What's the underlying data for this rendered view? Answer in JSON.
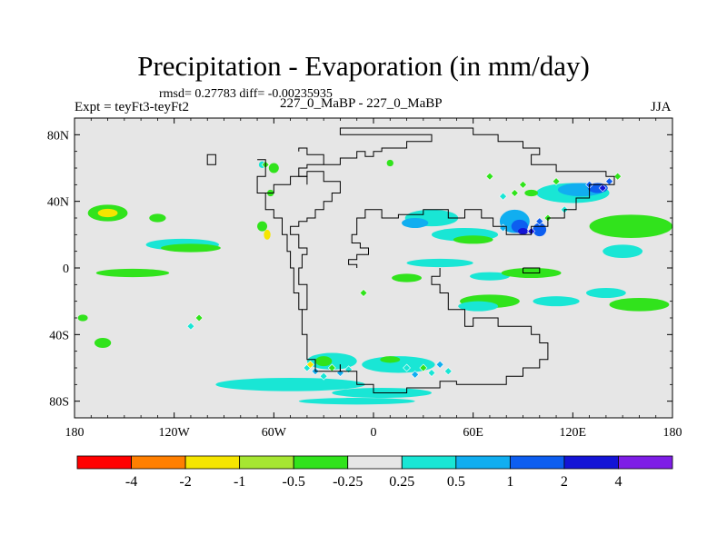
{
  "chart_data": {
    "type": "contour-map",
    "title": "Precipitation - Evaporation (in mm/day)",
    "stats": "rmsd= 0.27783 diff= -0.00235935",
    "left_label": "Expt = teyFt3-teyFt2",
    "center_label": "227_0_MaBP - 227_0_MaBP",
    "right_label": "JJA",
    "x_range": [
      -180,
      180
    ],
    "y_range": [
      -90,
      90
    ],
    "x_ticks": [
      {
        "value": -180,
        "label": "180"
      },
      {
        "value": -120,
        "label": "120W"
      },
      {
        "value": -60,
        "label": "60W"
      },
      {
        "value": 0,
        "label": "0"
      },
      {
        "value": 60,
        "label": "60E"
      },
      {
        "value": 120,
        "label": "120E"
      },
      {
        "value": 180,
        "label": "180"
      }
    ],
    "y_ticks": [
      {
        "value": 80,
        "label": "80N"
      },
      {
        "value": 40,
        "label": "40N"
      },
      {
        "value": 0,
        "label": "0"
      },
      {
        "value": -40,
        "label": "40S"
      },
      {
        "value": -80,
        "label": "80S"
      }
    ],
    "colorbar": {
      "colors": [
        "#ff0000",
        "#ff7f00",
        "#f5e500",
        "#a6e632",
        "#31e31c",
        "#e6e6e6",
        "#19e6d5",
        "#11aef0",
        "#0d5ef0",
        "#1414d6",
        "#7e1ee6"
      ],
      "labels": [
        "-4",
        "-2",
        "-1",
        "-0.5",
        "-0.25",
        "0.25",
        "0.5",
        "1",
        "2",
        "4"
      ]
    },
    "background_color": "#e6e6e6",
    "blobs": [
      {
        "lon": -160,
        "lat": 33,
        "rlon": 12,
        "rlat": 5,
        "level": -0.5
      },
      {
        "lon": -160,
        "lat": 33,
        "rlon": 6,
        "rlat": 2.5,
        "level": -1
      },
      {
        "lon": -115,
        "lat": 14,
        "rlon": 22,
        "rlat": 3.5,
        "level": 0.25
      },
      {
        "lon": -110,
        "lat": 12,
        "rlon": 18,
        "rlat": 2.5,
        "level": -0.5
      },
      {
        "lon": -145,
        "lat": -3,
        "rlon": 22,
        "rlat": 2.5,
        "level": -0.5
      },
      {
        "lon": -130,
        "lat": 30,
        "rlon": 5,
        "rlat": 2.5,
        "level": -0.5
      },
      {
        "lon": -163,
        "lat": -45,
        "rlon": 5,
        "rlat": 3,
        "level": -0.5
      },
      {
        "lon": -175,
        "lat": -30,
        "rlon": 3,
        "rlat": 2,
        "level": -0.5
      },
      {
        "lon": -67,
        "lat": 25,
        "rlon": 3,
        "rlat": 3,
        "level": -0.5
      },
      {
        "lon": -64,
        "lat": 20,
        "rlon": 2,
        "rlat": 3,
        "level": -1
      },
      {
        "lon": -60,
        "lat": 60,
        "rlon": 3,
        "rlat": 3,
        "level": -0.5
      },
      {
        "lon": -62,
        "lat": 45,
        "rlon": 2,
        "rlat": 2,
        "level": -0.5
      },
      {
        "lon": -67,
        "lat": 62,
        "rlon": 2,
        "rlat": 2,
        "level": 0.25
      },
      {
        "lon": 10,
        "lat": 63,
        "rlon": 2,
        "rlat": 2,
        "level": -0.5
      },
      {
        "lon": 35,
        "lat": 30,
        "rlon": 16,
        "rlat": 5,
        "level": 0.25
      },
      {
        "lon": 25,
        "lat": 27,
        "rlon": 8,
        "rlat": 3,
        "level": 0.5
      },
      {
        "lon": 55,
        "lat": 20,
        "rlon": 20,
        "rlat": 4,
        "level": 0.25
      },
      {
        "lon": 60,
        "lat": 17,
        "rlon": 12,
        "rlat": 2.5,
        "level": -0.5
      },
      {
        "lon": 85,
        "lat": 28,
        "rlon": 9,
        "rlat": 7,
        "level": 0.5
      },
      {
        "lon": 88,
        "lat": 25,
        "rlon": 5,
        "rlat": 4,
        "level": 1
      },
      {
        "lon": 90,
        "lat": 22,
        "rlon": 3,
        "rlat": 2,
        "level": 2
      },
      {
        "lon": 100,
        "lat": 23,
        "rlon": 4,
        "rlat": 4,
        "level": 1
      },
      {
        "lon": 120,
        "lat": 45,
        "rlon": 22,
        "rlat": 6,
        "level": 0.25
      },
      {
        "lon": 125,
        "lat": 47,
        "rlon": 14,
        "rlat": 4,
        "level": 0.5
      },
      {
        "lon": 135,
        "lat": 48,
        "rlon": 6,
        "rlat": 3,
        "level": 1
      },
      {
        "lon": 95,
        "lat": 45,
        "rlon": 4,
        "rlat": 2,
        "level": -0.5
      },
      {
        "lon": 40,
        "lat": 3,
        "rlon": 20,
        "rlat": 2.5,
        "level": 0.25
      },
      {
        "lon": 20,
        "lat": -6,
        "rlon": 9,
        "rlat": 2.5,
        "level": -0.5
      },
      {
        "lon": 70,
        "lat": -5,
        "rlon": 12,
        "rlat": 2.5,
        "level": 0.25
      },
      {
        "lon": 95,
        "lat": -3,
        "rlon": 18,
        "rlat": 3,
        "level": -0.5
      },
      {
        "lon": 70,
        "lat": -20,
        "rlon": 18,
        "rlat": 4,
        "level": -0.5
      },
      {
        "lon": 63,
        "lat": -23,
        "rlon": 12,
        "rlat": 3,
        "level": 0.25
      },
      {
        "lon": 110,
        "lat": -20,
        "rlon": 14,
        "rlat": 3,
        "level": 0.25
      },
      {
        "lon": 155,
        "lat": 25,
        "rlon": 25,
        "rlat": 7,
        "level": -0.5
      },
      {
        "lon": 150,
        "lat": 10,
        "rlon": 12,
        "rlat": 4,
        "level": 0.25
      },
      {
        "lon": 160,
        "lat": -22,
        "rlon": 18,
        "rlat": 4,
        "level": -0.5
      },
      {
        "lon": 140,
        "lat": -15,
        "rlon": 12,
        "rlat": 3,
        "level": 0.25
      },
      {
        "lon": -25,
        "lat": -56,
        "rlon": 15,
        "rlat": 5,
        "level": 0.25
      },
      {
        "lon": 15,
        "lat": -58,
        "rlon": 22,
        "rlat": 5,
        "level": 0.25
      },
      {
        "lon": -30,
        "lat": -56,
        "rlon": 5,
        "rlat": 3,
        "level": -0.5
      },
      {
        "lon": 10,
        "lat": -55,
        "rlon": 6,
        "rlat": 2,
        "level": -0.5
      },
      {
        "lon": -50,
        "lat": -70,
        "rlon": 45,
        "rlat": 4,
        "level": 0.25
      },
      {
        "lon": 5,
        "lat": -75,
        "rlon": 30,
        "rlat": 3,
        "level": 0.25
      },
      {
        "lon": -10,
        "lat": -80,
        "rlon": 35,
        "rlat": 2,
        "level": 0.25
      }
    ],
    "diamonds": [
      {
        "lon": 85,
        "lat": 45,
        "level": -0.5
      },
      {
        "lon": 90,
        "lat": 50,
        "level": -0.5
      },
      {
        "lon": 78,
        "lat": 43,
        "level": 0.25
      },
      {
        "lon": 70,
        "lat": 55,
        "level": -0.5
      },
      {
        "lon": 110,
        "lat": 52,
        "level": -0.5
      },
      {
        "lon": 130,
        "lat": 50,
        "level": 1
      },
      {
        "lon": 138,
        "lat": 48,
        "level": 2
      },
      {
        "lon": 142,
        "lat": 52,
        "level": 1
      },
      {
        "lon": 147,
        "lat": 55,
        "level": -0.5
      },
      {
        "lon": 95,
        "lat": 22,
        "level": 2
      },
      {
        "lon": 100,
        "lat": 28,
        "level": 1
      },
      {
        "lon": 105,
        "lat": 30,
        "level": -0.5
      },
      {
        "lon": 78,
        "lat": 24,
        "level": 0.5
      },
      {
        "lon": 115,
        "lat": 35,
        "level": 0.25
      },
      {
        "lon": -40,
        "lat": -60,
        "level": 0.25
      },
      {
        "lon": -35,
        "lat": -62,
        "level": 0.5
      },
      {
        "lon": -30,
        "lat": -65,
        "level": 0.25
      },
      {
        "lon": -25,
        "lat": -60,
        "level": -0.5
      },
      {
        "lon": -20,
        "lat": -63,
        "level": 0.5
      },
      {
        "lon": -15,
        "lat": -61,
        "level": 0.25
      },
      {
        "lon": 20,
        "lat": -60,
        "level": 0.25
      },
      {
        "lon": 25,
        "lat": -64,
        "level": 0.5
      },
      {
        "lon": 30,
        "lat": -60,
        "level": -0.5
      },
      {
        "lon": 35,
        "lat": -63,
        "level": 0.25
      },
      {
        "lon": 40,
        "lat": -58,
        "level": 0.5
      },
      {
        "lon": 45,
        "lat": -62,
        "level": 0.25
      },
      {
        "lon": -38,
        "lat": -58,
        "level": -1
      },
      {
        "lon": -6,
        "lat": -15,
        "level": -0.5
      },
      {
        "lon": -105,
        "lat": -30,
        "level": -0.5
      },
      {
        "lon": -110,
        "lat": -35,
        "level": 0.25
      },
      {
        "lon": -65,
        "lat": 62,
        "level": -0.5
      }
    ],
    "outline": [
      [
        -45,
        70
      ],
      [
        -45,
        72
      ],
      [
        -40,
        72
      ],
      [
        -40,
        68
      ],
      [
        -30,
        68
      ],
      [
        -30,
        62
      ],
      [
        -20,
        62
      ],
      [
        -20,
        66
      ],
      [
        -10,
        66
      ],
      [
        -10,
        70
      ],
      [
        -5,
        70
      ],
      [
        -5,
        67
      ],
      [
        0,
        67
      ],
      [
        0,
        70
      ],
      [
        5,
        70
      ],
      [
        5,
        72
      ],
      [
        20,
        72
      ],
      [
        20,
        76
      ],
      [
        35,
        76
      ],
      [
        35,
        80
      ],
      [
        -20,
        80
      ],
      [
        -20,
        84
      ],
      [
        60,
        84
      ],
      [
        60,
        80
      ],
      [
        75,
        80
      ],
      [
        75,
        76
      ],
      [
        90,
        76
      ],
      [
        90,
        72
      ],
      [
        100,
        72
      ],
      [
        100,
        68
      ],
      [
        95,
        68
      ],
      [
        95,
        62
      ],
      [
        110,
        62
      ],
      [
        110,
        58
      ],
      [
        140,
        58
      ],
      [
        140,
        55
      ],
      [
        145,
        55
      ],
      [
        145,
        50
      ],
      [
        130,
        50
      ],
      [
        130,
        42
      ],
      [
        122,
        42
      ],
      [
        122,
        35
      ],
      [
        115,
        35
      ],
      [
        115,
        30
      ],
      [
        105,
        30
      ],
      [
        105,
        25
      ],
      [
        95,
        25
      ],
      [
        95,
        20
      ],
      [
        80,
        20
      ],
      [
        80,
        25
      ],
      [
        72,
        25
      ],
      [
        72,
        30
      ],
      [
        65,
        30
      ],
      [
        65,
        35
      ],
      [
        55,
        35
      ],
      [
        55,
        30
      ],
      [
        45,
        30
      ],
      [
        45,
        35
      ],
      [
        30,
        35
      ],
      [
        30,
        32
      ],
      [
        15,
        32
      ],
      [
        15,
        30
      ],
      [
        5,
        30
      ],
      [
        5,
        35
      ],
      [
        -5,
        35
      ],
      [
        -5,
        30
      ],
      [
        -10,
        30
      ],
      [
        -10,
        20
      ],
      [
        -13,
        20
      ],
      [
        -13,
        15
      ],
      [
        -8,
        15
      ],
      [
        -8,
        12
      ],
      [
        -3,
        12
      ],
      [
        -3,
        8
      ],
      [
        -10,
        8
      ],
      [
        -10,
        5
      ],
      [
        -15,
        5
      ],
      [
        -15,
        2
      ],
      [
        -10,
        2
      ],
      [
        -10,
        0
      ]
    ],
    "outline2": [
      [
        -40,
        50
      ],
      [
        -40,
        55
      ],
      [
        -45,
        55
      ],
      [
        -45,
        60
      ],
      [
        -40,
        60
      ],
      [
        -40,
        62
      ],
      [
        -30,
        62
      ]
    ],
    "americas": [
      [
        -65,
        45
      ],
      [
        -60,
        45
      ],
      [
        -60,
        50
      ],
      [
        -50,
        50
      ],
      [
        -50,
        55
      ],
      [
        -40,
        55
      ],
      [
        -40,
        58
      ],
      [
        -30,
        58
      ],
      [
        -30,
        52
      ],
      [
        -20,
        52
      ],
      [
        -20,
        45
      ],
      [
        -25,
        45
      ],
      [
        -25,
        40
      ],
      [
        -30,
        40
      ],
      [
        -30,
        35
      ],
      [
        -35,
        35
      ],
      [
        -35,
        30
      ],
      [
        -40,
        30
      ],
      [
        -40,
        28
      ],
      [
        -45,
        28
      ],
      [
        -45,
        25
      ],
      [
        -50,
        25
      ],
      [
        -50,
        20
      ],
      [
        -45,
        20
      ],
      [
        -45,
        12
      ],
      [
        -40,
        12
      ],
      [
        -40,
        8
      ],
      [
        -43,
        8
      ],
      [
        -43,
        0
      ],
      [
        -45,
        0
      ],
      [
        -45,
        -10
      ],
      [
        -40,
        -10
      ],
      [
        -40,
        -25
      ],
      [
        -43,
        -25
      ],
      [
        -43,
        -40
      ],
      [
        -40,
        -40
      ],
      [
        -40,
        -55
      ],
      [
        -35,
        -55
      ],
      [
        -35,
        -62
      ],
      [
        -20,
        -62
      ],
      [
        -20,
        -58
      ]
    ],
    "westcoast": [
      [
        -70,
        65
      ],
      [
        -65,
        65
      ],
      [
        -65,
        55
      ],
      [
        -70,
        55
      ],
      [
        -70,
        45
      ],
      [
        -65,
        45
      ],
      [
        -65,
        35
      ],
      [
        -60,
        35
      ],
      [
        -60,
        30
      ],
      [
        -55,
        30
      ],
      [
        -55,
        20
      ],
      [
        -52,
        20
      ],
      [
        -52,
        10
      ],
      [
        -50,
        10
      ],
      [
        -50,
        0
      ],
      [
        -48,
        0
      ],
      [
        -48,
        -15
      ],
      [
        -45,
        -15
      ],
      [
        -45,
        -25
      ],
      [
        -43,
        -25
      ]
    ],
    "southcontinent": [
      [
        -20,
        -58
      ],
      [
        -20,
        -62
      ],
      [
        -10,
        -62
      ],
      [
        -10,
        -70
      ],
      [
        0,
        -70
      ],
      [
        0,
        -75
      ],
      [
        20,
        -75
      ],
      [
        20,
        -72
      ],
      [
        40,
        -72
      ],
      [
        40,
        -68
      ],
      [
        50,
        -68
      ],
      [
        50,
        -70
      ],
      [
        80,
        -70
      ],
      [
        80,
        -65
      ],
      [
        90,
        -65
      ],
      [
        90,
        -60
      ],
      [
        100,
        -60
      ],
      [
        100,
        -55
      ],
      [
        105,
        -55
      ],
      [
        105,
        -45
      ],
      [
        100,
        -45
      ],
      [
        100,
        -40
      ],
      [
        95,
        -40
      ],
      [
        95,
        -35
      ],
      [
        75,
        -35
      ],
      [
        75,
        -30
      ],
      [
        60,
        -30
      ],
      [
        60,
        -35
      ],
      [
        55,
        -35
      ],
      [
        55,
        -25
      ],
      [
        45,
        -25
      ],
      [
        45,
        -15
      ],
      [
        40,
        -15
      ],
      [
        40,
        -10
      ],
      [
        35,
        -10
      ],
      [
        35,
        -5
      ],
      [
        40,
        -5
      ],
      [
        40,
        0
      ]
    ],
    "island": [
      [
        90,
        0
      ],
      [
        100,
        0
      ],
      [
        100,
        -3
      ],
      [
        90,
        -3
      ],
      [
        90,
        0
      ]
    ],
    "island2": [
      [
        -100,
        65
      ],
      [
        -100,
        68
      ],
      [
        -95,
        68
      ],
      [
        -95,
        62
      ],
      [
        -100,
        62
      ],
      [
        -100,
        65
      ]
    ]
  }
}
